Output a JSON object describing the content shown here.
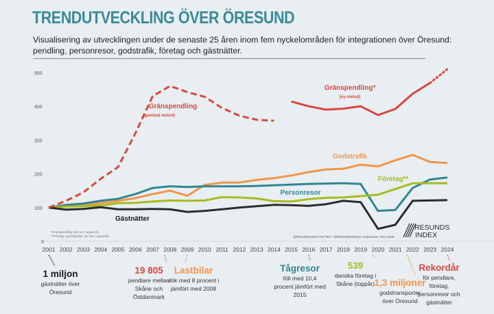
{
  "title": "TRENDUTVECKLING ÖVER ÖRESUND",
  "subtitle": "Visualisering av utvecklingen under de senaste 25 åren inom fem nyckelområden för integrationen över Öresund: pendling, personresor, godstrafik, företag och gästnätter.",
  "footnotes": [
    "*Gränspendling: läs mer i appendix",
    "**Företag i grannlandet: läs mer i appendix"
  ],
  "credit": "@RESUNDSINSTITUTTET • @RESUNDSINDEX JUBILEUM • MAJ 2025",
  "logo": {
    "line1": "RESUNDS",
    "line2": "INDEX"
  },
  "chart_data": {
    "type": "line",
    "title": "TRENDUTVECKLING ÖVER ÖRESUND",
    "x": [
      2001,
      2002,
      2003,
      2004,
      2005,
      2006,
      2007,
      2008,
      2009,
      2010,
      2011,
      2012,
      2013,
      2014,
      2015,
      2016,
      2017,
      2018,
      2019,
      2020,
      2021,
      2022,
      2023,
      2024
    ],
    "x_tick_labels": [
      "2001",
      "2002",
      "2003",
      "2004",
      "2005",
      "2006",
      "2007",
      "2008",
      "2009",
      "2010",
      "2011",
      "2012",
      "2013",
      "2014",
      "2015",
      "2016",
      "2017",
      "2018",
      "2019",
      "2020",
      "2021",
      "2022",
      "2023",
      "2024"
    ],
    "ylim": [
      0,
      500
    ],
    "y_ticks": [
      "0",
      "100",
      "200",
      "300",
      "400",
      "500"
    ],
    "grid": false,
    "legend": "inline labels",
    "series": [
      {
        "name": "Gränspendling",
        "sub": "(gammal metod)",
        "color": "#d9473f",
        "style": "dashed",
        "values": [
          100,
          120,
          145,
          185,
          220,
          320,
          430,
          460,
          442,
          428,
          395,
          372,
          360,
          357,
          null,
          null,
          null,
          null,
          null,
          null,
          null,
          null,
          null,
          null
        ]
      },
      {
        "name": "Gränspendling*",
        "sub": "(ny metod)",
        "color": "#d9473f",
        "style": "solid",
        "projected_from": 2023,
        "values": [
          null,
          null,
          null,
          null,
          null,
          null,
          null,
          null,
          null,
          null,
          null,
          null,
          null,
          null,
          414,
          400,
          390,
          393,
          400,
          374,
          392,
          437,
          469,
          510
        ]
      },
      {
        "name": "Godstrafik",
        "color": "#f0954a",
        "style": "solid",
        "values": [
          100,
          104,
          108,
          113,
          120,
          128,
          140,
          150,
          135,
          167,
          174,
          174,
          182,
          187,
          195,
          205,
          213,
          215,
          227,
          222,
          240,
          256,
          235,
          232
        ]
      },
      {
        "name": "Personresor",
        "color": "#2f8593",
        "style": "solid",
        "values": [
          100,
          108,
          112,
          120,
          126,
          140,
          158,
          163,
          161,
          163,
          163,
          163,
          164,
          166,
          168,
          170,
          171,
          172,
          170,
          90,
          93,
          158,
          183,
          189
        ]
      },
      {
        "name": "Företag**",
        "color": "#a7bb1e",
        "style": "solid",
        "values": [
          100,
          103,
          104,
          106,
          113,
          114,
          118,
          121,
          120,
          121,
          131,
          130,
          127,
          119,
          118,
          125,
          129,
          130,
          134,
          138,
          155,
          172,
          172,
          172
        ]
      },
      {
        "name": "Gästnätter",
        "color": "#2b2b2b",
        "style": "solid",
        "values": [
          100,
          94,
          96,
          101,
          95,
          95,
          96,
          95,
          87,
          90,
          95,
          100,
          104,
          108,
          107,
          105,
          110,
          120,
          116,
          37,
          49,
          120,
          121,
          122
        ]
      }
    ]
  },
  "annotations": [
    {
      "year": 2001,
      "headline": "1 miljon",
      "text": "gästnätter över Öresund",
      "color": "#1a1a1a"
    },
    {
      "year": 2008,
      "headline": "19 805",
      "text": "pendlare mellan Skåne och Östdanmark",
      "color": "#d9473f"
    },
    {
      "year": 2009,
      "headline": "Lastbilar",
      "text": "dök med 8 procent i jämfört med 2008",
      "color": "#f0954a"
    },
    {
      "year": 2016,
      "headline": "Tågresor",
      "text": "föll med 10,4 procent jämfört med 2015",
      "color": "#2f8593"
    },
    {
      "year": 2020,
      "headline": "539",
      "text": "danska företag i Skåne (toppår)",
      "color": "#a7bb1e"
    },
    {
      "year": 2022,
      "headline": "1,3 miljoner",
      "text": "godstransporter över Öresund",
      "color": "#f0954a"
    },
    {
      "year": 2024,
      "headline": "Rekordår",
      "text": "för pendlare, företag, personresor och gästnätter",
      "color": "#d9473f"
    }
  ]
}
